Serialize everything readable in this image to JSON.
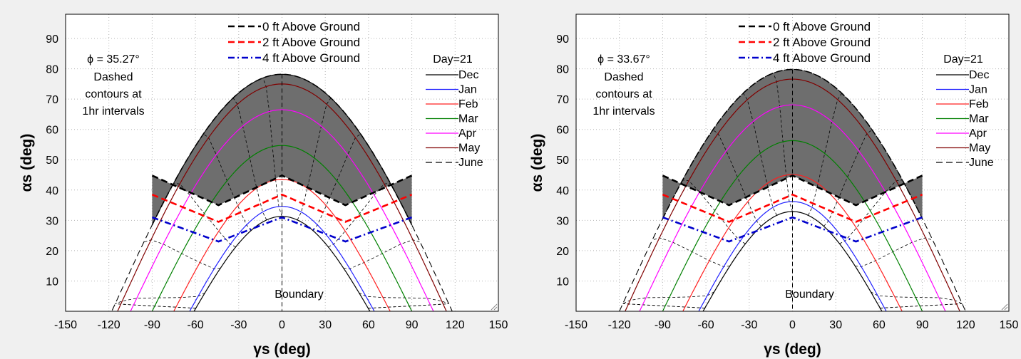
{
  "chart_data": [
    {
      "type": "line",
      "phi_label": "ϕ = 35.27°",
      "note_lines": [
        "Dashed",
        "contours at",
        "1hr intervals"
      ],
      "boundary_label": "Boundary",
      "xlabel": "γs (deg)",
      "ylabel": "αs (deg)",
      "xlim": [
        -150,
        150
      ],
      "ylim": [
        0,
        98
      ],
      "x_ticks": [
        -150,
        -120,
        -90,
        -60,
        -30,
        0,
        30,
        60,
        90,
        120,
        150
      ],
      "y_ticks": [
        10,
        20,
        30,
        40,
        50,
        60,
        70,
        80,
        90
      ],
      "grid": true,
      "height_legend": [
        {
          "name": "0 ft Above Ground",
          "color": "#000000",
          "style": "dash"
        },
        {
          "name": "2 ft Above Ground",
          "color": "#ff0000",
          "style": "dash"
        },
        {
          "name": "4 ft Above Ground",
          "color": "#0000cc",
          "style": "dashdot"
        }
      ],
      "day_legend_title": "Day=21",
      "months": [
        {
          "name": "Dec",
          "color": "#000000",
          "peak": 31.3,
          "az_half": 61.0,
          "style": "solid"
        },
        {
          "name": "Jan",
          "color": "#2020ff",
          "peak": 34.6,
          "az_half": 64.0,
          "style": "solid"
        },
        {
          "name": "Feb",
          "color": "#ff2020",
          "peak": 43.5,
          "az_half": 75.0,
          "style": "solid"
        },
        {
          "name": "Mar",
          "color": "#008000",
          "peak": 54.7,
          "az_half": 90.0,
          "style": "solid"
        },
        {
          "name": "Apr",
          "color": "#ff00ff",
          "peak": 66.5,
          "az_half": 105.0,
          "style": "solid"
        },
        {
          "name": "May",
          "color": "#800000",
          "peak": 75.0,
          "az_half": 114.0,
          "style": "solid"
        },
        {
          "name": "June",
          "color": "#000000",
          "peak": 78.2,
          "az_half": 118.0,
          "style": "dash"
        }
      ],
      "boundary_0ft": {
        "x": [
          -90,
          -44,
          0,
          44,
          90
        ],
        "y": [
          44.8,
          35.0,
          44.8,
          35.0,
          44.8
        ]
      },
      "boundary_2ft": {
        "x": [
          -90,
          -44,
          0,
          44,
          90
        ],
        "y": [
          38.5,
          29.5,
          38.5,
          29.5,
          38.5
        ]
      },
      "boundary_4ft": {
        "x": [
          -90,
          -44,
          0,
          44,
          90
        ],
        "y": [
          31.0,
          23.0,
          31.0,
          23.0,
          31.0
        ]
      }
    },
    {
      "type": "line",
      "phi_label": "ϕ = 33.67°",
      "note_lines": [
        "Dashed",
        "contours at",
        "1hr intervals"
      ],
      "boundary_label": "Boundary",
      "xlabel": "γs (deg)",
      "ylabel": "αs (deg)",
      "xlim": [
        -150,
        150
      ],
      "ylim": [
        0,
        98
      ],
      "x_ticks": [
        -150,
        -120,
        -90,
        -60,
        -30,
        0,
        30,
        60,
        90,
        120,
        150
      ],
      "y_ticks": [
        10,
        20,
        30,
        40,
        50,
        60,
        70,
        80,
        90
      ],
      "grid": true,
      "height_legend": [
        {
          "name": "0 ft Above Ground",
          "color": "#000000",
          "style": "dash"
        },
        {
          "name": "2 ft Above Ground",
          "color": "#ff0000",
          "style": "dash"
        },
        {
          "name": "4 ft Above Ground",
          "color": "#0000cc",
          "style": "dashdot"
        }
      ],
      "day_legend_title": "Day=21",
      "months": [
        {
          "name": "Dec",
          "color": "#000000",
          "peak": 32.9,
          "az_half": 62.0,
          "style": "solid"
        },
        {
          "name": "Jan",
          "color": "#2020ff",
          "peak": 36.2,
          "az_half": 65.0,
          "style": "solid"
        },
        {
          "name": "Feb",
          "color": "#ff2020",
          "peak": 45.1,
          "az_half": 76.0,
          "style": "solid"
        },
        {
          "name": "Mar",
          "color": "#008000",
          "peak": 56.3,
          "az_half": 90.0,
          "style": "solid"
        },
        {
          "name": "Apr",
          "color": "#ff00ff",
          "peak": 68.1,
          "az_half": 106.0,
          "style": "solid"
        },
        {
          "name": "May",
          "color": "#800000",
          "peak": 76.6,
          "az_half": 116.0,
          "style": "solid"
        },
        {
          "name": "June",
          "color": "#000000",
          "peak": 79.8,
          "az_half": 120.0,
          "style": "dash"
        }
      ],
      "boundary_0ft": {
        "x": [
          -90,
          -44,
          0,
          44,
          90
        ],
        "y": [
          44.8,
          35.0,
          44.8,
          35.0,
          44.8
        ]
      },
      "boundary_2ft": {
        "x": [
          -90,
          -44,
          0,
          44,
          90
        ],
        "y": [
          38.5,
          29.5,
          38.5,
          29.5,
          38.5
        ]
      },
      "boundary_4ft": {
        "x": [
          -90,
          -44,
          0,
          44,
          90
        ],
        "y": [
          31.0,
          23.0,
          31.0,
          23.0,
          31.0
        ]
      }
    }
  ]
}
